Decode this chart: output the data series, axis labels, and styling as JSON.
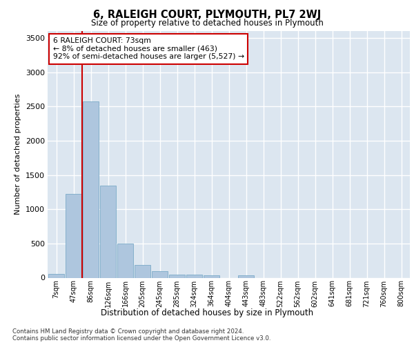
{
  "title": "6, RALEIGH COURT, PLYMOUTH, PL7 2WJ",
  "subtitle": "Size of property relative to detached houses in Plymouth",
  "xlabel": "Distribution of detached houses by size in Plymouth",
  "ylabel": "Number of detached properties",
  "bar_labels": [
    "7sqm",
    "47sqm",
    "86sqm",
    "126sqm",
    "166sqm",
    "205sqm",
    "245sqm",
    "285sqm",
    "324sqm",
    "364sqm",
    "404sqm",
    "443sqm",
    "483sqm",
    "522sqm",
    "562sqm",
    "602sqm",
    "641sqm",
    "681sqm",
    "721sqm",
    "760sqm",
    "800sqm"
  ],
  "bar_values": [
    55,
    1225,
    2575,
    1340,
    500,
    190,
    100,
    50,
    45,
    35,
    0,
    35,
    0,
    0,
    0,
    0,
    0,
    0,
    0,
    0,
    0
  ],
  "bar_color": "#aec6de",
  "bar_edgecolor": "#7aaac8",
  "vline_color": "#cc0000",
  "annotation_title": "6 RALEIGH COURT: 73sqm",
  "annotation_line1": "← 8% of detached houses are smaller (463)",
  "annotation_line2": "92% of semi-detached houses are larger (5,527) →",
  "ylim": [
    0,
    3600
  ],
  "yticks": [
    0,
    500,
    1000,
    1500,
    2000,
    2500,
    3000,
    3500
  ],
  "plot_bg_color": "#dce6f0",
  "footer1": "Contains HM Land Registry data © Crown copyright and database right 2024.",
  "footer2": "Contains public sector information licensed under the Open Government Licence v3.0."
}
